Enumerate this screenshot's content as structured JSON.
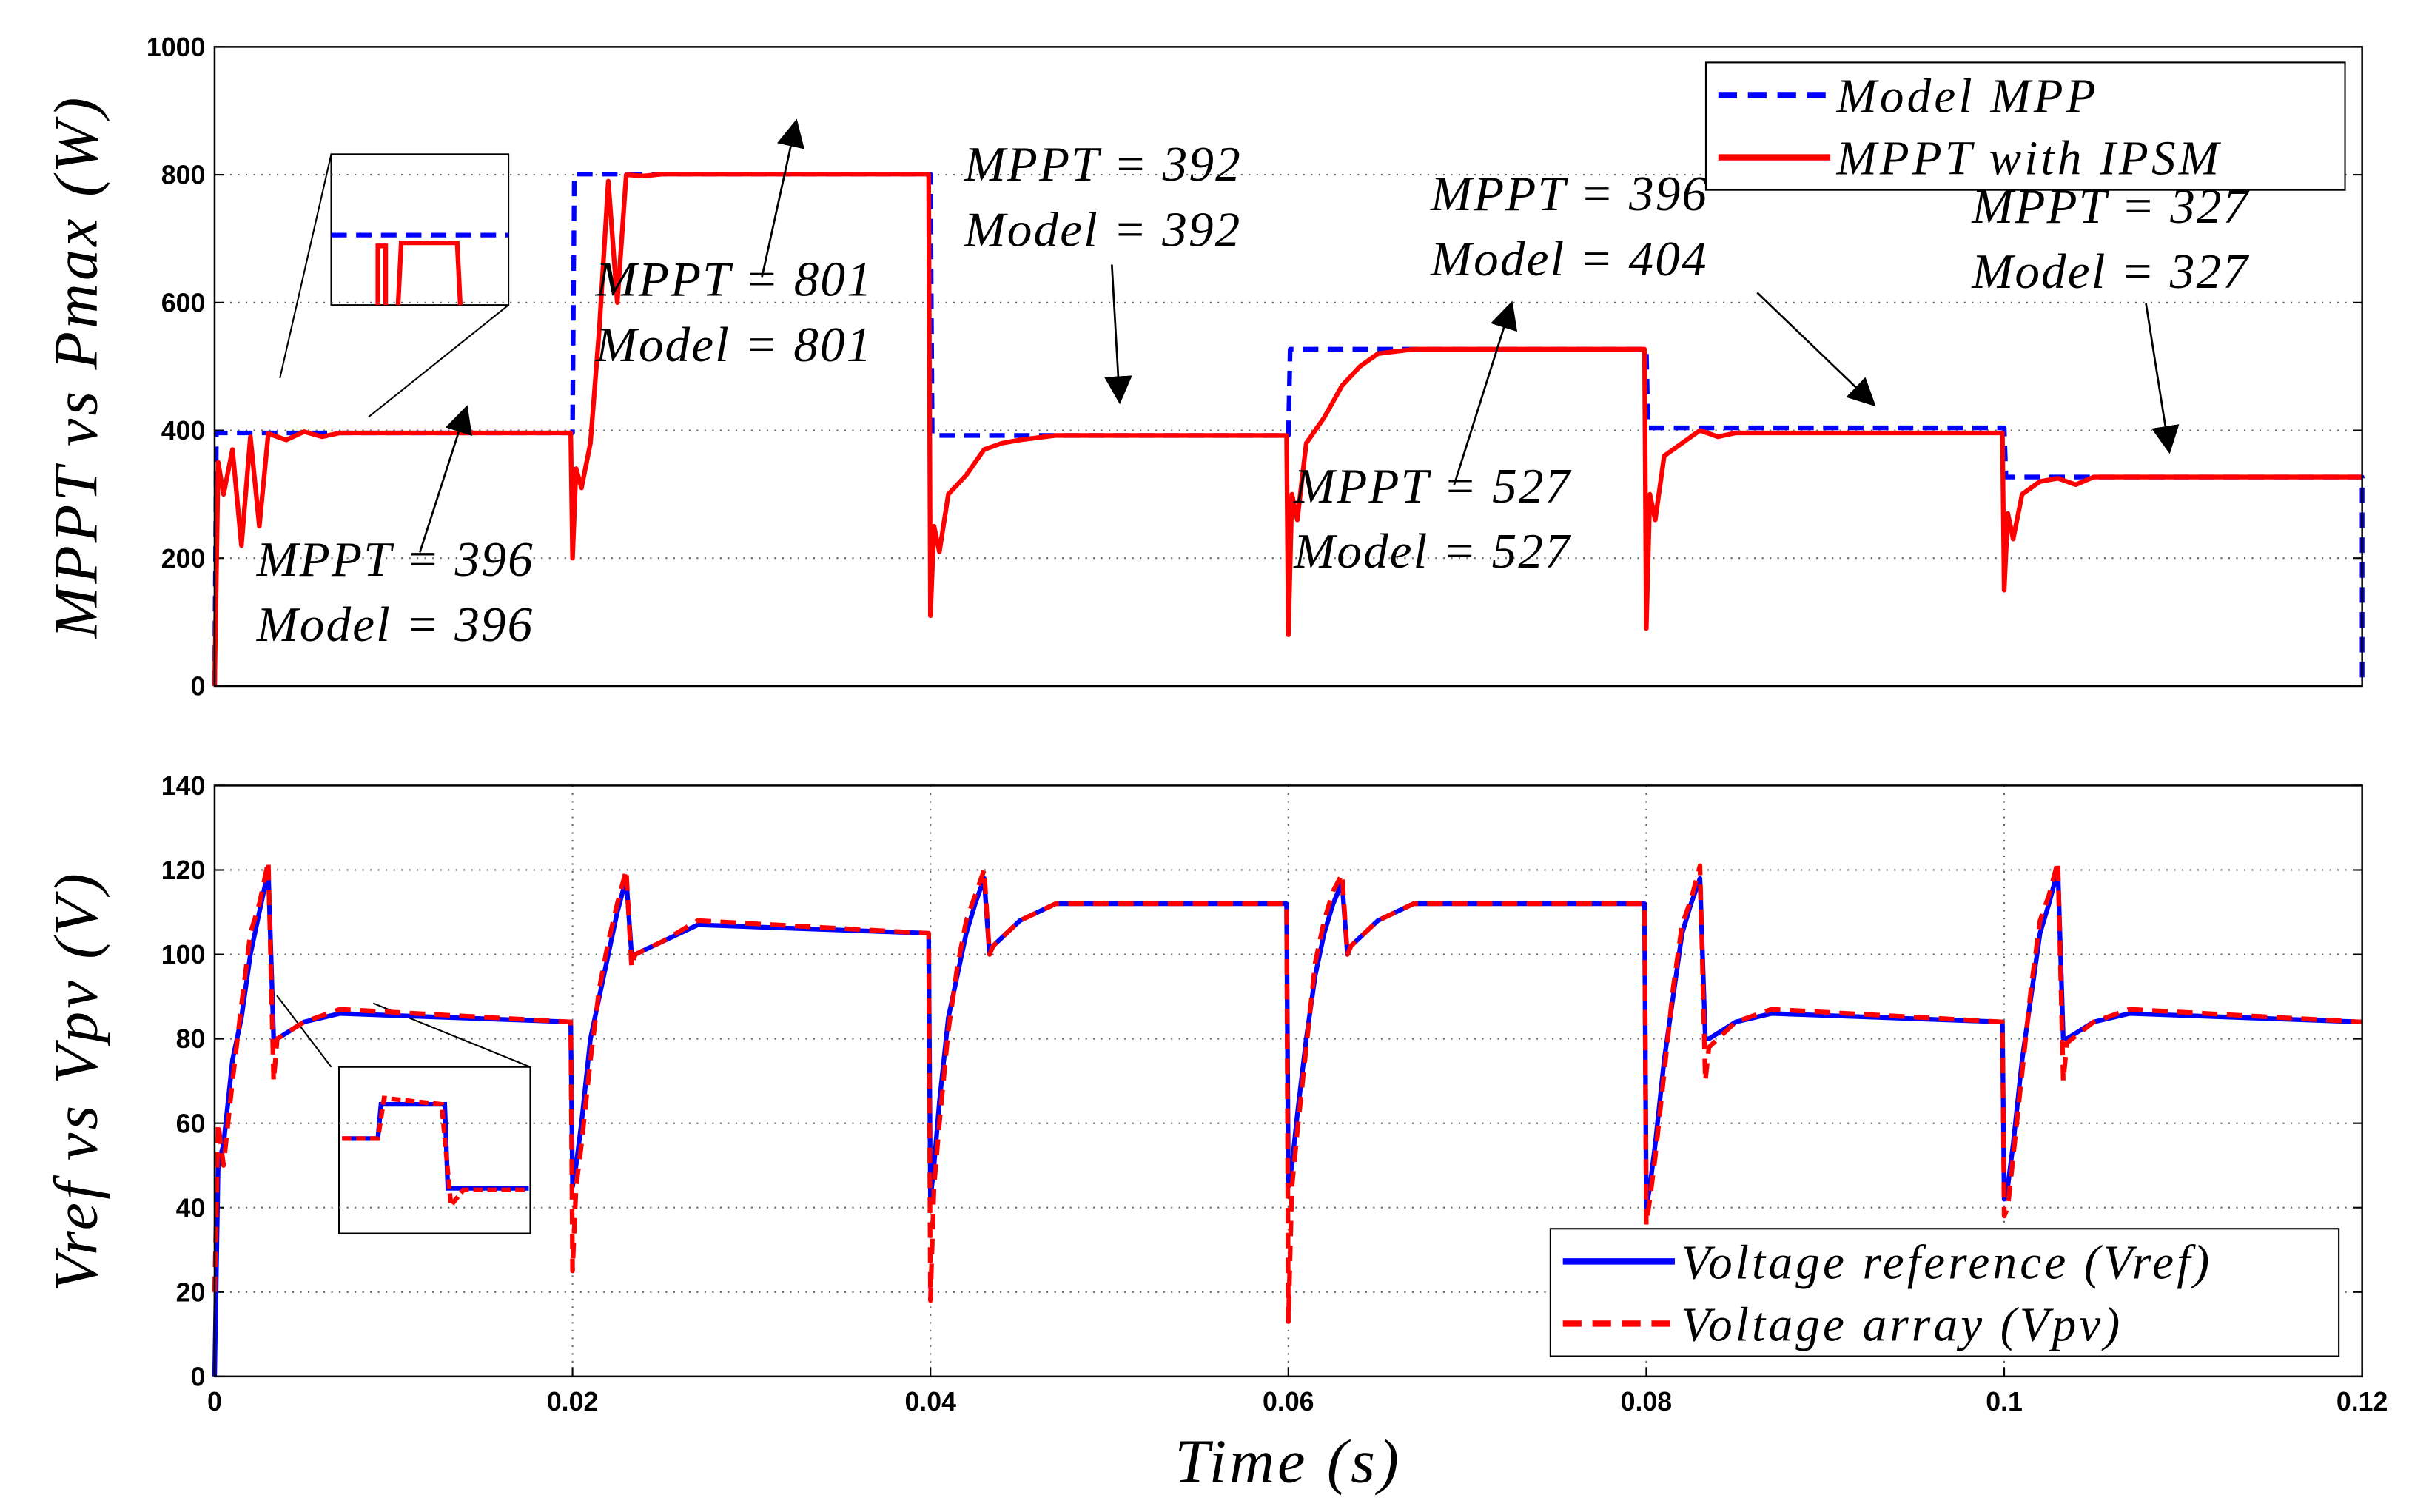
{
  "chart_data": [
    {
      "type": "line",
      "ylabel": "MPPT vs Pmax (W)",
      "xlim": [
        0,
        0.12
      ],
      "ylim": [
        0,
        1000
      ],
      "yticks": [
        0,
        200,
        400,
        600,
        800,
        1000
      ],
      "grid": true,
      "legend": "upper right",
      "series": [
        {
          "name": "Model MPP",
          "color": "#0000ff",
          "dashed": true,
          "x": [
            0,
            0.0001,
            0.02,
            0.0201,
            0.04,
            0.0401,
            0.06,
            0.0601,
            0.08,
            0.0801,
            0.1,
            0.1001,
            0.12,
            0.12
          ],
          "values": [
            0,
            396,
            396,
            801,
            801,
            392,
            392,
            527,
            527,
            404,
            404,
            327,
            327,
            0
          ]
        },
        {
          "name": "MPPT with IPSM",
          "color": "#ff0000",
          "dashed": false,
          "x": [
            0,
            0.0002,
            0.0005,
            0.001,
            0.0015,
            0.002,
            0.0025,
            0.003,
            0.0035,
            0.004,
            0.005,
            0.006,
            0.007,
            0.008,
            0.0199,
            0.02,
            0.0202,
            0.0205,
            0.021,
            0.0215,
            0.022,
            0.0225,
            0.023,
            0.024,
            0.025,
            0.027,
            0.0399,
            0.04,
            0.0402,
            0.0405,
            0.041,
            0.042,
            0.043,
            0.044,
            0.045,
            0.047,
            0.0599,
            0.06,
            0.0602,
            0.0605,
            0.061,
            0.062,
            0.063,
            0.064,
            0.065,
            0.067,
            0.0799,
            0.08,
            0.0802,
            0.0805,
            0.081,
            0.082,
            0.083,
            0.084,
            0.085,
            0.087,
            0.0999,
            0.1,
            0.1002,
            0.1005,
            0.101,
            0.102,
            0.103,
            0.104,
            0.105,
            0.107,
            0.12
          ],
          "values": [
            0,
            350,
            300,
            370,
            220,
            390,
            250,
            395,
            390,
            385,
            398,
            390,
            396,
            396,
            396,
            200,
            340,
            310,
            380,
            560,
            790,
            600,
            800,
            798,
            801,
            801,
            801,
            110,
            250,
            210,
            300,
            330,
            370,
            380,
            385,
            392,
            392,
            80,
            300,
            260,
            380,
            420,
            470,
            500,
            520,
            527,
            527,
            90,
            300,
            260,
            360,
            380,
            400,
            390,
            396,
            396,
            396,
            150,
            270,
            230,
            300,
            320,
            325,
            315,
            327,
            327,
            327
          ]
        }
      ],
      "annotations": [
        {
          "text": [
            "MPPT = 396",
            "Model = 396"
          ]
        },
        {
          "text": [
            "MPPT = 801",
            "Model = 801"
          ]
        },
        {
          "text": [
            "MPPT = 392",
            "Model = 392"
          ]
        },
        {
          "text": [
            "MPPT = 396",
            "Model = 404"
          ]
        },
        {
          "text": [
            "MPPT = 527",
            "Model = 527"
          ]
        },
        {
          "text": [
            "MPPT = 327",
            "Model = 327"
          ]
        }
      ]
    },
    {
      "type": "line",
      "ylabel": "Vref vs Vpv (V)",
      "xlabel": "Time (s)",
      "xlim": [
        0,
        0.12
      ],
      "xticks": [
        0,
        0.02,
        0.04,
        0.06,
        0.08,
        0.1,
        0.12
      ],
      "ylim": [
        0,
        140
      ],
      "yticks": [
        0,
        20,
        40,
        60,
        80,
        100,
        120,
        140
      ],
      "grid": true,
      "legend": "lower right",
      "x": [
        0,
        0.0002,
        0.0005,
        0.001,
        0.0015,
        0.002,
        0.0025,
        0.003,
        0.0033,
        0.0035,
        0.005,
        0.007,
        0.0199,
        0.02,
        0.0202,
        0.0205,
        0.021,
        0.0215,
        0.022,
        0.0225,
        0.023,
        0.0233,
        0.0235,
        0.025,
        0.027,
        0.0399,
        0.04,
        0.0402,
        0.0405,
        0.041,
        0.0415,
        0.042,
        0.0425,
        0.043,
        0.0433,
        0.0435,
        0.045,
        0.047,
        0.0599,
        0.06,
        0.0602,
        0.0605,
        0.061,
        0.0615,
        0.062,
        0.0625,
        0.063,
        0.0633,
        0.0635,
        0.065,
        0.067,
        0.0799,
        0.08,
        0.0802,
        0.0805,
        0.081,
        0.0815,
        0.082,
        0.0825,
        0.083,
        0.0833,
        0.0835,
        0.085,
        0.087,
        0.0999,
        0.1,
        0.1002,
        0.1005,
        0.101,
        0.1015,
        0.102,
        0.1025,
        0.103,
        0.1033,
        0.1035,
        0.105,
        0.107,
        0.1199,
        0.12
      ],
      "series": [
        {
          "name": "Voltage reference (Vref)",
          "color": "#0000ff",
          "dashed": false,
          "values": [
            0,
            50,
            55,
            75,
            85,
            100,
            110,
            120,
            80,
            80,
            84,
            86,
            84,
            45,
            50,
            60,
            80,
            90,
            100,
            110,
            118,
            100,
            100,
            103,
            107,
            105,
            42,
            50,
            65,
            85,
            95,
            105,
            112,
            118,
            100,
            102,
            108,
            112,
            112,
            45,
            50,
            62,
            80,
            95,
            105,
            112,
            117,
            100,
            102,
            108,
            112,
            112,
            40,
            45,
            55,
            75,
            90,
            105,
            112,
            118,
            80,
            80,
            84,
            86,
            84,
            42,
            45,
            55,
            75,
            90,
            105,
            112,
            120,
            80,
            80,
            84,
            86,
            84,
            84
          ]
        },
        {
          "name": "Voltage array (Vpv)",
          "color": "#ff0000",
          "dashed": true,
          "values": [
            20,
            60,
            50,
            70,
            88,
            105,
            112,
            122,
            70,
            80,
            84,
            87,
            84,
            25,
            45,
            55,
            75,
            92,
            103,
            112,
            120,
            97,
            100,
            103,
            108,
            105,
            18,
            45,
            60,
            82,
            97,
            108,
            114,
            120,
            100,
            102,
            108,
            112,
            112,
            13,
            45,
            58,
            78,
            98,
            108,
            115,
            119,
            100,
            102,
            108,
            112,
            112,
            36,
            42,
            52,
            72,
            92,
            107,
            113,
            121,
            70,
            78,
            84,
            87,
            84,
            38,
            40,
            52,
            72,
            92,
            108,
            114,
            122,
            70,
            79,
            84,
            87,
            84,
            84
          ]
        }
      ]
    }
  ]
}
